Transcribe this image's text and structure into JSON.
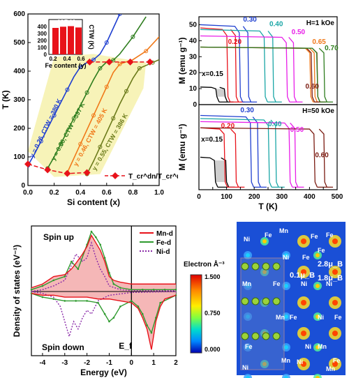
{
  "colors": {
    "blue": "#1f3fd0",
    "green": "#2e7d1e",
    "orange": "#f07818",
    "olive": "#6b7a1a",
    "red": "#e8121a",
    "cyan": "#1aa6a6",
    "magenta": "#e81ee8",
    "darkred": "#7a1a10",
    "yellow_fill": "#f7f3b8",
    "inset_red": "#e8121a"
  },
  "chart_data": [
    {
      "type": "line",
      "xlabel": "Si content (x)",
      "ylabel": "T (K)",
      "xlim": [
        0,
        1.0
      ],
      "ylim": [
        0,
        600
      ],
      "xticks": [
        "0.0",
        "0.2",
        "0.4",
        "0.6",
        "0.8",
        "1.0"
      ],
      "yticks": [
        "0",
        "100",
        "200",
        "300",
        "400",
        "500",
        "600"
      ],
      "annotations": [
        "y = 0.26, CTW = 380 K",
        "y = 0.36, CTW = 397 K",
        "y = 0.46, CTW = 405 K",
        "y = 0.55, CTW = 386 K"
      ],
      "legend": "T_cr^dn/T_cr^up",
      "series": [
        {
          "name": "y = 0.26",
          "color": "blue",
          "points": [
            [
              0.0,
              70
            ],
            [
              0.05,
              110
            ],
            [
              0.1,
              155
            ],
            [
              0.15,
              200
            ],
            [
              0.2,
              245
            ],
            [
              0.25,
              290
            ],
            [
              0.3,
              335
            ],
            [
              0.35,
              380
            ],
            [
              0.4,
              415
            ],
            [
              0.45,
              430
            ],
            [
              0.5,
              440
            ],
            [
              0.55,
              460
            ],
            [
              0.6,
              500
            ],
            [
              0.65,
              550
            ],
            [
              0.7,
              600
            ]
          ]
        },
        {
          "name": "y = 0.36",
          "color": "green",
          "points": [
            [
              0.15,
              60
            ],
            [
              0.2,
              100
            ],
            [
              0.25,
              145
            ],
            [
              0.3,
              190
            ],
            [
              0.35,
              235
            ],
            [
              0.4,
              280
            ],
            [
              0.45,
              325
            ],
            [
              0.5,
              370
            ],
            [
              0.55,
              410
            ],
            [
              0.6,
              432
            ],
            [
              0.65,
              438
            ],
            [
              0.7,
              460
            ],
            [
              0.8,
              520
            ],
            [
              0.9,
              590
            ]
          ]
        },
        {
          "name": "y = 0.46",
          "color": "orange",
          "points": [
            [
              0.3,
              45
            ],
            [
              0.35,
              95
            ],
            [
              0.4,
              145
            ],
            [
              0.45,
              195
            ],
            [
              0.5,
              245
            ],
            [
              0.55,
              295
            ],
            [
              0.6,
              345
            ],
            [
              0.65,
              395
            ],
            [
              0.7,
              425
            ],
            [
              0.8,
              440
            ],
            [
              0.9,
              470
            ],
            [
              1.0,
              520
            ]
          ]
        },
        {
          "name": "y = 0.55",
          "color": "olive",
          "points": [
            [
              0.45,
              40
            ],
            [
              0.5,
              85
            ],
            [
              0.55,
              135
            ],
            [
              0.6,
              185
            ],
            [
              0.65,
              235
            ],
            [
              0.7,
              285
            ],
            [
              0.75,
              330
            ],
            [
              0.8,
              375
            ],
            [
              0.85,
              410
            ],
            [
              0.9,
              420
            ],
            [
              0.95,
              430
            ],
            [
              1.0,
              440
            ]
          ]
        }
      ],
      "critical_points": [
        [
          0.0,
          75
        ],
        [
          0.15,
          55
        ],
        [
          0.3,
          42
        ],
        [
          0.45,
          45
        ],
        [
          0.62,
          432
        ],
        [
          0.47,
          432
        ],
        [
          0.78,
          432
        ],
        [
          0.93,
          432
        ]
      ],
      "inset": {
        "title": "405 K",
        "xlabel": "Fe content (y)",
        "ylabel": "CTW (K)",
        "yticks": [
          "0",
          "100",
          "200",
          "300",
          "400"
        ],
        "xticks": [
          "0.2",
          "0.4",
          "0.6"
        ],
        "categories": [
          0.26,
          0.36,
          0.46,
          0.55
        ],
        "values": [
          380,
          397,
          405,
          386
        ]
      }
    },
    {
      "type": "line",
      "xlabel": "T (K)",
      "ylabel_top": "M (emu g⁻¹)",
      "ylabel_bottom": "M (emu g⁻¹)",
      "xlim": [
        0,
        500
      ],
      "xticks": [
        "0",
        "50",
        "100",
        "150",
        "200",
        "250",
        "300",
        "350",
        "400",
        "450",
        "500"
      ],
      "top": {
        "field": "H=1 kOe",
        "ylim": [
          0,
          55
        ],
        "yticks": [
          "0",
          "10",
          "20",
          "30",
          "40",
          "50"
        ],
        "labels": [
          {
            "text": "x=0.15",
            "x": 10,
            "y": 18,
            "color": "black"
          },
          {
            "text": "0.20",
            "x": 105,
            "y": 38,
            "color": "red"
          },
          {
            "text": "0.30",
            "x": 160,
            "y": 52,
            "color": "blue"
          },
          {
            "text": "0.40",
            "x": 255,
            "y": 49,
            "color": "cyan"
          },
          {
            "text": "0.50",
            "x": 335,
            "y": 44,
            "color": "magenta"
          },
          {
            "text": "0.65",
            "x": 410,
            "y": 38,
            "color": "orange"
          },
          {
            "text": "0.60",
            "x": 385,
            "y": 10,
            "color": "darkred"
          },
          {
            "text": "0.70",
            "x": 455,
            "y": 34,
            "color": "green"
          }
        ],
        "curves": [
          {
            "color": "black",
            "level": 11,
            "down": 65,
            "up": 95
          },
          {
            "color": "red",
            "level": 48,
            "down": 105,
            "up": 135
          },
          {
            "color": "blue",
            "level": 50,
            "down": 150,
            "up": 180
          },
          {
            "color": "cyan",
            "level": 47,
            "down": 240,
            "up": 270
          },
          {
            "color": "magenta",
            "level": 43,
            "down": 320,
            "up": 345
          },
          {
            "color": "orange",
            "level": 36,
            "down": 405,
            "up": 420
          },
          {
            "color": "darkred",
            "level": 36,
            "down": 410,
            "up": 430
          },
          {
            "color": "green",
            "level": 36,
            "down": 430,
            "up": 455
          }
        ]
      },
      "bottom": {
        "field": "H=50 kOe",
        "ylim": [
          0,
          110
        ],
        "yticks": [],
        "labels": [
          {
            "text": "x=0.15",
            "x": 8,
            "y": 62,
            "color": "black"
          },
          {
            "text": "0.20",
            "x": 80,
            "y": 80,
            "color": "red"
          },
          {
            "text": "0.30",
            "x": 150,
            "y": 100,
            "color": "blue"
          },
          {
            "text": "0.40",
            "x": 250,
            "y": 82,
            "color": "cyan"
          },
          {
            "text": "0.50",
            "x": 330,
            "y": 75,
            "color": "magenta"
          },
          {
            "text": "0.60",
            "x": 420,
            "y": 42,
            "color": "darkred"
          }
        ],
        "curves": [
          {
            "color": "black",
            "level": 42,
            "down": 60,
            "up": 100
          },
          {
            "color": "red",
            "level": 80,
            "down": 95,
            "up": 135
          },
          {
            "color": "blue",
            "level": 96,
            "down": 190,
            "up": 215
          },
          {
            "color": "cyan",
            "level": 92,
            "down": 255,
            "up": 280
          },
          {
            "color": "magenta",
            "level": 88,
            "down": 330,
            "up": 350
          },
          {
            "color": "darkred",
            "level": 80,
            "down": 420,
            "up": 455
          }
        ]
      }
    },
    {
      "type": "area",
      "xlabel": "Energy (eV)",
      "ylabel": "Density of states (eV⁻¹)",
      "xlim": [
        -4.5,
        2
      ],
      "xticks": [
        "-4",
        "-3",
        "-2",
        "-1",
        "0",
        "1",
        "2"
      ],
      "spin_up_label": "Spin up",
      "spin_down_label": "Spin down",
      "ef_label": "E_f",
      "legend": [
        {
          "name": "Mn-d",
          "color": "red"
        },
        {
          "name": "Fe-d",
          "color": "green"
        },
        {
          "name": "Ni-d",
          "color": "purple"
        }
      ],
      "mn_up": [
        [
          -4.5,
          0.2
        ],
        [
          -4,
          0.4
        ],
        [
          -3.5,
          0.8
        ],
        [
          -3,
          0.9
        ],
        [
          -2.7,
          1.2
        ],
        [
          -2.5,
          1.5
        ],
        [
          -2.2,
          2.0
        ],
        [
          -2,
          2.4
        ],
        [
          -1.8,
          3.0
        ],
        [
          -1.6,
          2.6
        ],
        [
          -1.4,
          2.2
        ],
        [
          -1.2,
          1.6
        ],
        [
          -1,
          0.8
        ],
        [
          -0.8,
          0.6
        ],
        [
          -0.5,
          0.5
        ],
        [
          0,
          0.4
        ],
        [
          0.5,
          0.4
        ],
        [
          1,
          0.4
        ],
        [
          1.5,
          0.4
        ],
        [
          2,
          0.4
        ]
      ],
      "fe_up": [
        [
          -4.5,
          0.1
        ],
        [
          -4,
          0.3
        ],
        [
          -3.5,
          0.6
        ],
        [
          -3,
          0.8
        ],
        [
          -2.7,
          1.6
        ],
        [
          -2.4,
          1.2
        ],
        [
          -2,
          2.5
        ],
        [
          -1.8,
          3.2
        ],
        [
          -1.6,
          2.9
        ],
        [
          -1.4,
          2.5
        ],
        [
          -1.2,
          1.8
        ],
        [
          -1,
          1.0
        ],
        [
          -0.8,
          0.4
        ],
        [
          -0.5,
          0.2
        ],
        [
          0,
          0.1
        ],
        [
          0.5,
          0.1
        ],
        [
          1,
          0.1
        ],
        [
          1.5,
          0.1
        ],
        [
          2,
          0.1
        ]
      ],
      "ni_up": [
        [
          -4.5,
          0.0
        ],
        [
          -4,
          0.1
        ],
        [
          -3.5,
          0.3
        ],
        [
          -3,
          0.6
        ],
        [
          -2.7,
          1.4
        ],
        [
          -2.5,
          2.0
        ],
        [
          -2.2,
          1.6
        ],
        [
          -2,
          1.8
        ],
        [
          -1.8,
          2.6
        ],
        [
          -1.6,
          1.8
        ],
        [
          -1.4,
          1.2
        ],
        [
          -1.2,
          0.8
        ],
        [
          -1,
          0.3
        ],
        [
          -0.5,
          0.1
        ],
        [
          0,
          0.05
        ],
        [
          1,
          0.05
        ],
        [
          2,
          0.05
        ]
      ],
      "mn_dn": [
        [
          -4.5,
          -0.1
        ],
        [
          -4,
          -0.2
        ],
        [
          -3.5,
          -0.2
        ],
        [
          -3,
          -0.3
        ],
        [
          -2.5,
          -0.3
        ],
        [
          -2,
          -0.3
        ],
        [
          -1.5,
          -0.4
        ],
        [
          -1,
          -0.4
        ],
        [
          -0.5,
          -0.5
        ],
        [
          0,
          -0.6
        ],
        [
          0.3,
          -0.9
        ],
        [
          0.5,
          -1.4
        ],
        [
          0.7,
          -2.0
        ],
        [
          0.9,
          -3.1
        ],
        [
          1.1,
          -1.6
        ],
        [
          1.3,
          -0.8
        ],
        [
          1.5,
          -0.4
        ],
        [
          2,
          -0.2
        ]
      ],
      "fe_dn": [
        [
          -4.5,
          -0.1
        ],
        [
          -4,
          -0.3
        ],
        [
          -3.5,
          -0.4
        ],
        [
          -3,
          -0.5
        ],
        [
          -2.5,
          -0.5
        ],
        [
          -2,
          -0.5
        ],
        [
          -1.5,
          -0.6
        ],
        [
          -1.2,
          -1.2
        ],
        [
          -1,
          -1.6
        ],
        [
          -0.8,
          -1.4
        ],
        [
          -0.5,
          -0.8
        ],
        [
          0,
          -0.5
        ],
        [
          0.3,
          -0.8
        ],
        [
          0.5,
          -1.2
        ],
        [
          0.7,
          -1.8
        ],
        [
          0.9,
          -2.2
        ],
        [
          1.1,
          -1.4
        ],
        [
          1.3,
          -0.6
        ],
        [
          2,
          -0.2
        ]
      ],
      "ni_dn": [
        [
          -4.5,
          0
        ],
        [
          -4,
          -0.1
        ],
        [
          -3.5,
          -0.3
        ],
        [
          -3.2,
          -0.8
        ],
        [
          -3,
          -1.6
        ],
        [
          -2.8,
          -2.4
        ],
        [
          -2.6,
          -1.6
        ],
        [
          -2.4,
          -2.0
        ],
        [
          -2.2,
          -1.4
        ],
        [
          -2,
          -1.0
        ],
        [
          -1.8,
          -1.2
        ],
        [
          -1.5,
          -0.5
        ],
        [
          -1,
          -0.2
        ],
        [
          0,
          -0.05
        ],
        [
          2,
          0
        ]
      ]
    },
    {
      "type": "heatmap",
      "colorbar_title": "Electron Å⁻³",
      "colorbar_ticks": [
        "1.500",
        "0.750",
        "0.000"
      ],
      "labels": [
        "Ni",
        "Fe",
        "Mn",
        "Ni",
        "Fe",
        "Fe",
        "Mn",
        "Ni",
        "Mn",
        "Fe",
        "Ni",
        "Fe",
        "Ni",
        "Mn",
        "Fe",
        "Ni",
        "Mn",
        "Fe",
        "Fe",
        "Ni",
        "Mn",
        "Ni",
        "Fe",
        "Fe"
      ],
      "moments": [
        "2.8μ_B",
        "0.1μ_B",
        "1.8μ_B"
      ]
    }
  ]
}
